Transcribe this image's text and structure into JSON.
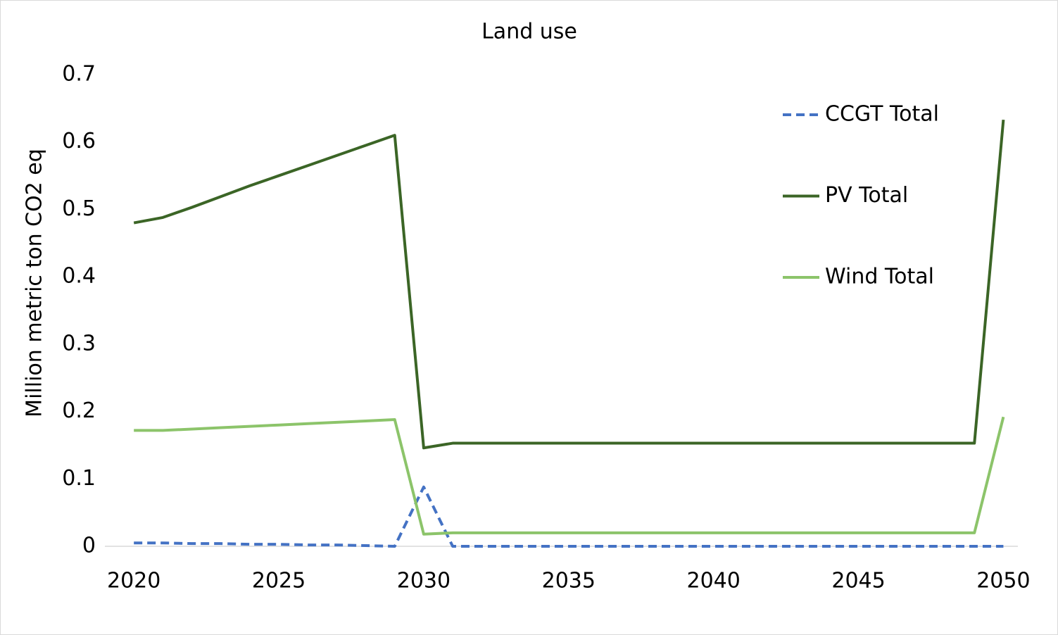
{
  "chart_data": {
    "type": "line",
    "title": "Land use",
    "y_label": "Million metric ton CO2 eq",
    "x": [
      2020,
      2021,
      2022,
      2023,
      2024,
      2025,
      2026,
      2027,
      2028,
      2029,
      2030,
      2031,
      2032,
      2033,
      2034,
      2035,
      2036,
      2037,
      2038,
      2039,
      2040,
      2041,
      2042,
      2043,
      2044,
      2045,
      2046,
      2047,
      2048,
      2049,
      2050
    ],
    "series": [
      {
        "name": "CCGT Total",
        "color": "#4472c4",
        "dash": true,
        "values": [
          0.005,
          0.005,
          0.004,
          0.004,
          0.003,
          0.003,
          0.002,
          0.002,
          0.001,
          0.0,
          0.088,
          0,
          0,
          0,
          0,
          0,
          0,
          0,
          0,
          0,
          0,
          0,
          0,
          0,
          0,
          0,
          0,
          0,
          0,
          0,
          0
        ]
      },
      {
        "name": "PV Total",
        "color": "#3b6526",
        "dash": false,
        "values": [
          0.48,
          0.488,
          0.503,
          0.519,
          0.535,
          0.55,
          0.565,
          0.58,
          0.595,
          0.61,
          0.146,
          0.153,
          0.153,
          0.153,
          0.153,
          0.153,
          0.153,
          0.153,
          0.153,
          0.153,
          0.153,
          0.153,
          0.153,
          0.153,
          0.153,
          0.153,
          0.153,
          0.153,
          0.153,
          0.153,
          0.633
        ]
      },
      {
        "name": "Wind Total",
        "color": "#8cc46a",
        "dash": false,
        "values": [
          0.172,
          0.172,
          0.174,
          0.176,
          0.178,
          0.18,
          0.182,
          0.184,
          0.186,
          0.188,
          0.018,
          0.02,
          0.02,
          0.02,
          0.02,
          0.02,
          0.02,
          0.02,
          0.02,
          0.02,
          0.02,
          0.02,
          0.02,
          0.02,
          0.02,
          0.02,
          0.02,
          0.02,
          0.02,
          0.02,
          0.192
        ]
      }
    ],
    "xlim": [
      2019,
      2050.5
    ],
    "xticks": [
      2020,
      2025,
      2030,
      2035,
      2040,
      2045,
      2050
    ],
    "ylim": [
      0,
      0.7
    ],
    "yticks": [
      0,
      0.1,
      0.2,
      0.3,
      0.4,
      0.5,
      0.6,
      0.7
    ],
    "grid": false,
    "legend": "upper right"
  }
}
